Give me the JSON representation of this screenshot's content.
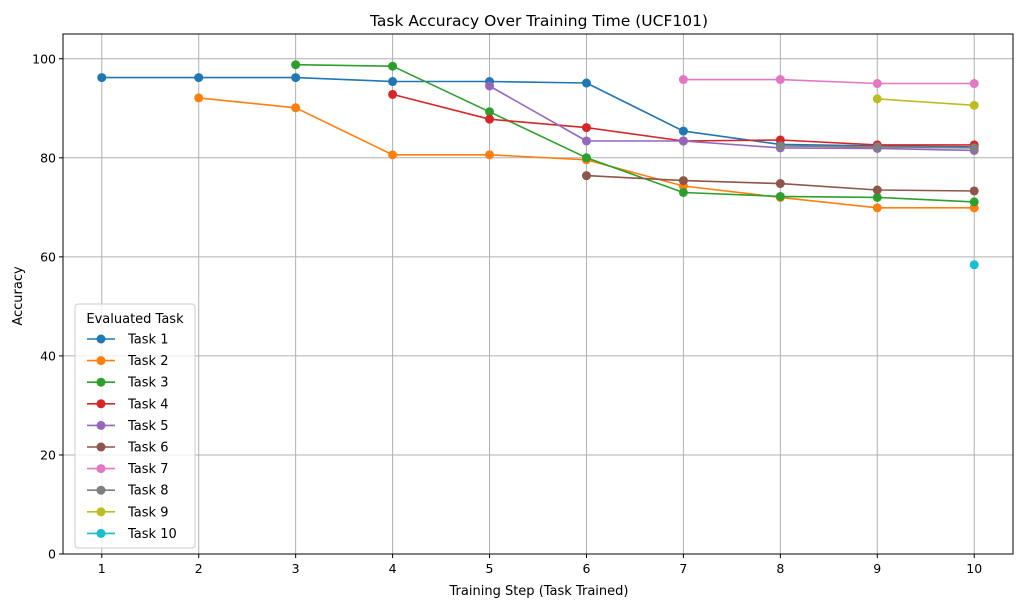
{
  "chart_data": {
    "type": "line",
    "title": "Task Accuracy Over Training Time (UCF101)",
    "xlabel": "Training Step (Task Trained)",
    "ylabel": "Accuracy",
    "x": [
      1,
      2,
      3,
      4,
      5,
      6,
      7,
      8,
      9,
      10
    ],
    "xlim": [
      0.6,
      10.4
    ],
    "ylim": [
      0,
      105
    ],
    "yticks": [
      0,
      20,
      40,
      60,
      80,
      100
    ],
    "grid": true,
    "legend": {
      "title": "Evaluated Task",
      "placement": "lower-left"
    },
    "series": [
      {
        "name": "Task 1",
        "color": "#1f77b4",
        "x": [
          1,
          2,
          3,
          4,
          5,
          6,
          7,
          8,
          9,
          10
        ],
        "values": [
          96.2,
          96.2,
          96.2,
          95.4,
          95.4,
          95.1,
          85.4,
          82.7,
          82.4,
          82.2
        ]
      },
      {
        "name": "Task 2",
        "color": "#ff7f0e",
        "x": [
          2,
          3,
          4,
          5,
          6,
          7,
          8,
          9,
          10
        ],
        "values": [
          92.1,
          90.1,
          80.6,
          80.6,
          79.6,
          74.3,
          72.0,
          69.9,
          69.9
        ]
      },
      {
        "name": "Task 3",
        "color": "#2ca02c",
        "x": [
          3,
          4,
          5,
          6,
          7,
          8,
          9,
          10
        ],
        "values": [
          98.8,
          98.5,
          89.3,
          80.0,
          73.0,
          72.2,
          72.0,
          71.1
        ]
      },
      {
        "name": "Task 4",
        "color": "#d62728",
        "x": [
          4,
          5,
          6,
          7,
          8,
          9,
          10
        ],
        "values": [
          92.8,
          87.8,
          86.1,
          83.4,
          83.6,
          82.6,
          82.6
        ]
      },
      {
        "name": "Task 5",
        "color": "#9467bd",
        "x": [
          5,
          6,
          7,
          8,
          9,
          10
        ],
        "values": [
          94.5,
          83.4,
          83.4,
          82.0,
          81.9,
          81.5
        ]
      },
      {
        "name": "Task 6",
        "color": "#8c564b",
        "x": [
          6,
          7,
          8,
          9,
          10
        ],
        "values": [
          76.4,
          75.4,
          74.8,
          73.5,
          73.3
        ]
      },
      {
        "name": "Task 7",
        "color": "#e377c2",
        "x": [
          7,
          8,
          9,
          10
        ],
        "values": [
          95.8,
          95.8,
          95.0,
          95.0
        ]
      },
      {
        "name": "Task 8",
        "color": "#7f7f7f",
        "x": [
          8,
          9,
          10
        ],
        "values": [
          82.4,
          82.2,
          82.0
        ]
      },
      {
        "name": "Task 9",
        "color": "#bcbd22",
        "x": [
          9,
          10
        ],
        "values": [
          91.9,
          90.6
        ]
      },
      {
        "name": "Task 10",
        "color": "#17becf",
        "x": [
          10
        ],
        "values": [
          58.4
        ]
      }
    ]
  }
}
